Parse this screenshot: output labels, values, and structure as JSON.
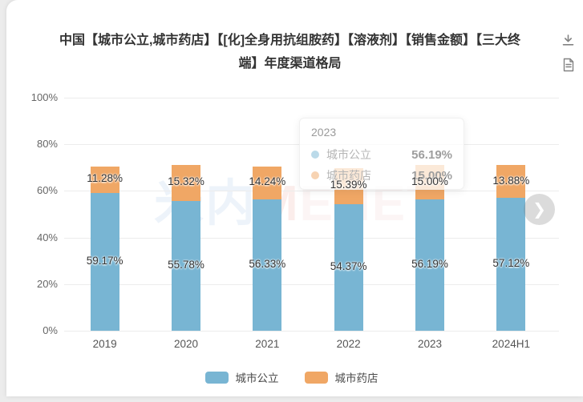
{
  "header": {
    "title": "中国【城市公立,城市药店】【[化]全身用抗组胺药】【溶液剂】【销售金额】【三大终端】年度渠道格局",
    "title_lines": [
      "中国【城市公立,城市药店】【[化]全身用抗组胺药】【溶液剂】【销售金额】【三大终",
      "端】年度渠道格局"
    ],
    "icons": [
      "download-icon",
      "report-icon"
    ]
  },
  "chart_data": {
    "type": "bar",
    "stacked": true,
    "title": "中国【城市公立,城市药店】【[化]全身用抗组胺药】【溶液剂】【销售金额】【三大终端】年度渠道格局",
    "categories": [
      "2019",
      "2020",
      "2021",
      "2022",
      "2023",
      "2024H1"
    ],
    "series": [
      {
        "name": "城市公立",
        "color": "#78b5d3",
        "values": [
          59.17,
          55.78,
          56.33,
          54.37,
          56.19,
          57.12
        ],
        "labels": [
          "59.17%",
          "55.78%",
          "56.33%",
          "54.37%",
          "56.19%",
          "57.12%"
        ]
      },
      {
        "name": "城市药店",
        "color": "#f0a765",
        "values": [
          11.28,
          15.32,
          14.24,
          15.39,
          15.0,
          13.88
        ],
        "labels": [
          "11.28%",
          "15.32%",
          "14.24%",
          "15.39%",
          "15.00%",
          "13.88%"
        ]
      }
    ],
    "ylim": [
      0,
      100
    ],
    "yticks": [
      {
        "value": 0,
        "label": "0%"
      },
      {
        "value": 20,
        "label": "20%"
      },
      {
        "value": 40,
        "label": "40%"
      },
      {
        "value": 60,
        "label": "60%"
      },
      {
        "value": 80,
        "label": "80%"
      },
      {
        "value": 100,
        "label": "100%"
      }
    ],
    "grid": true,
    "legend_position": "bottom"
  },
  "tooltip": {
    "title": "2023",
    "rows": [
      {
        "label": "城市公立",
        "value": "56.19%",
        "color": "#78b5d3"
      },
      {
        "label": "城市药店",
        "value": "15.00%",
        "color": "#f0a765"
      }
    ]
  },
  "watermark": {
    "part1": "米内",
    "part2": "M",
    "part3": "ENET",
    "color1": "#5b8fd0",
    "color2": "#e2554a",
    "color3": "#e8a9a4"
  },
  "carousel": {
    "next_label": "❯"
  },
  "colors": {
    "grid": "#ececec",
    "axis_text": "#666666",
    "value_text": "#333333"
  }
}
